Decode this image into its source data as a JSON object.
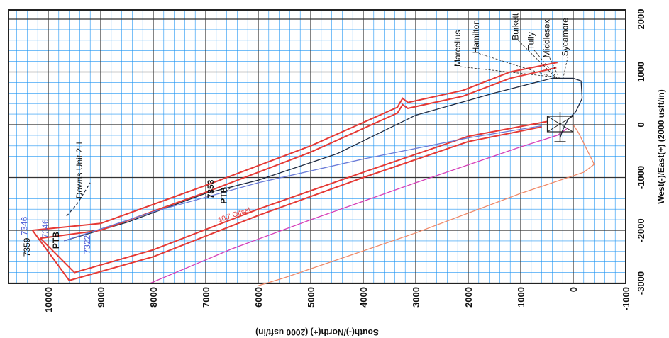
{
  "chart_data": {
    "type": "line",
    "grid": true,
    "xlabel": "South(-)/North(+) (2000 usft/in)",
    "ylabel": "West(-)/East(+) (2000 usft/in)",
    "x_ticks": [
      10000,
      9000,
      8000,
      7000,
      6000,
      5000,
      4000,
      3000,
      2000,
      1000,
      0,
      -1000
    ],
    "y_ticks": [
      2000,
      1000,
      0,
      -1000,
      -2000,
      -3000
    ],
    "colors": {
      "grid_major": "#333333",
      "grid_minor": "#2196f3",
      "well_path": "#1f2a40",
      "offset_red": "#e53935",
      "magenta": "#d63fb8",
      "orange": "#f0a35a",
      "blue_line": "#6a7bd8"
    },
    "series": [
      {
        "key": "main_path",
        "color": "#1f2a40",
        "points": [
          [
            0,
            880
          ],
          [
            400,
            880
          ],
          [
            1500,
            600
          ],
          [
            3000,
            180
          ],
          [
            4500,
            -550
          ],
          [
            6000,
            -1050
          ],
          [
            7000,
            -1300
          ],
          [
            8500,
            -1850
          ],
          [
            9700,
            -2200
          ]
        ]
      },
      {
        "key": "offset_outer_upper",
        "color": "#e53935",
        "points": [
          [
            300,
            1180
          ],
          [
            1200,
            1000
          ],
          [
            2100,
            650
          ],
          [
            3150,
            420
          ],
          [
            3250,
            500
          ],
          [
            3350,
            330
          ],
          [
            5000,
            -400
          ],
          [
            7000,
            -1150
          ],
          [
            9000,
            -1870
          ],
          [
            10300,
            -2000
          ]
        ]
      },
      {
        "key": "offset_inner_upper",
        "color": "#e53935",
        "points": [
          [
            320,
            1080
          ],
          [
            1200,
            880
          ],
          [
            2100,
            540
          ],
          [
            3150,
            310
          ],
          [
            3250,
            380
          ],
          [
            3350,
            220
          ],
          [
            5000,
            -520
          ],
          [
            7000,
            -1280
          ],
          [
            9000,
            -2000
          ],
          [
            10150,
            -2150
          ]
        ]
      },
      {
        "key": "offset_outer_lower",
        "color": "#e53935",
        "points": [
          [
            10300,
            -2000
          ],
          [
            9600,
            -2950
          ],
          [
            8000,
            -2500
          ],
          [
            6000,
            -1720
          ],
          [
            4000,
            -1000
          ],
          [
            2000,
            -320
          ],
          [
            600,
            -40
          ]
        ]
      },
      {
        "key": "offset_inner_lower",
        "color": "#e53935",
        "points": [
          [
            10150,
            -2150
          ],
          [
            9500,
            -2800
          ],
          [
            8000,
            -2370
          ],
          [
            6000,
            -1600
          ],
          [
            4000,
            -900
          ],
          [
            2000,
            -220
          ],
          [
            500,
            60
          ]
        ]
      },
      {
        "key": "blue_line",
        "color": "#6a7bd8",
        "points": [
          [
            9700,
            -2200
          ],
          [
            8000,
            -1650
          ],
          [
            6000,
            -1100
          ],
          [
            4000,
            -650
          ],
          [
            2000,
            -250
          ],
          [
            600,
            -20
          ]
        ]
      },
      {
        "key": "magenta_line",
        "color": "#d63fb8",
        "points": [
          [
            8050,
            -3000
          ],
          [
            6500,
            -2350
          ],
          [
            5000,
            -1800
          ],
          [
            3000,
            -1100
          ],
          [
            1000,
            -420
          ],
          [
            300,
            -200
          ],
          [
            100,
            -60
          ]
        ]
      },
      {
        "key": "salmon_line",
        "color": "#f08a6a",
        "points": [
          [
            0,
            0
          ],
          [
            -100,
            -150
          ],
          [
            -400,
            -750
          ],
          [
            -200,
            -900
          ],
          [
            1000,
            -1300
          ],
          [
            3000,
            -2050
          ],
          [
            5500,
            -2900
          ],
          [
            6000,
            -3050
          ]
        ]
      },
      {
        "key": "curl_path",
        "color": "#1f2a40",
        "points": [
          [
            0,
            880
          ],
          [
            -150,
            830
          ],
          [
            -170,
            500
          ],
          [
            -50,
            250
          ],
          [
            100,
            100
          ],
          [
            200,
            -100
          ],
          [
            250,
            -250
          ]
        ]
      },
      {
        "key": "lateral_dash",
        "color": "#1f2a40",
        "dash": true,
        "points": [
          [
            9650,
            -1730
          ],
          [
            9450,
            -1500
          ],
          [
            9200,
            -1100
          ]
        ]
      }
    ],
    "annotations": [
      {
        "text": "Marcellus",
        "x": 2150,
        "y": 1100
      },
      {
        "text": "Hamilton",
        "x": 1800,
        "y": 1350
      },
      {
        "text": "Burkett",
        "x": 1050,
        "y": 1600
      },
      {
        "text": "Tully",
        "x": 750,
        "y": 1420
      },
      {
        "text": "Middlesex",
        "x": 450,
        "y": 1270
      },
      {
        "text": "Sycamore",
        "x": 100,
        "y": 1300
      },
      {
        "text": "Downs Unit 2H",
        "x": 9350,
        "y": -1400
      },
      {
        "text": "7353",
        "x": 6850,
        "y": -1400
      },
      {
        "text": "PTB",
        "x": 6600,
        "y": -1500
      },
      {
        "text": "PTB",
        "x": 9800,
        "y": -2350
      },
      {
        "text": "7346",
        "x": 10400,
        "y": -2100
      },
      {
        "text": "7346",
        "x": 10000,
        "y": -2150
      },
      {
        "text": "7359",
        "x": 10350,
        "y": -2500
      },
      {
        "text": "7322",
        "x": 9200,
        "y": -2450
      },
      {
        "text": "100' Offset",
        "x": 6750,
        "y": -1850
      }
    ]
  }
}
